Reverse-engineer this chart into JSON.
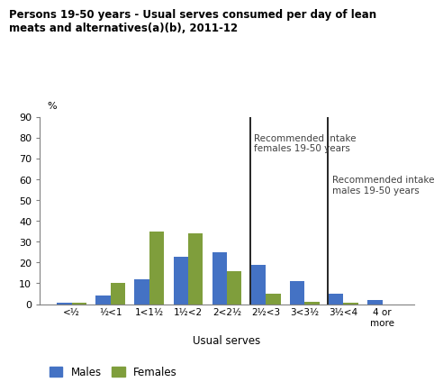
{
  "title": "Persons 19-50 years - Usual serves consumed per day of lean\nmeats and alternatives(a)(b), 2011-12",
  "categories": [
    "<½",
    "½<1",
    "1<1½",
    "1½<2",
    "2<2½",
    "2½<3",
    "3<3½",
    "3½<4",
    "4 or\nmore"
  ],
  "males": [
    0.5,
    4,
    12,
    23,
    25,
    19,
    11,
    5,
    2
  ],
  "females": [
    0.5,
    10,
    35,
    34,
    16,
    5,
    1,
    0.5,
    0
  ],
  "males_color": "#4472c4",
  "females_color": "#7f9e3c",
  "ylabel": "%",
  "xlabel": "Usual serves",
  "ylim": [
    0,
    90
  ],
  "yticks": [
    0,
    10,
    20,
    30,
    40,
    50,
    60,
    70,
    80,
    90
  ],
  "female_line_label": "Recommended intake\nfemales 19-50 years",
  "male_line_label": "Recommended intake\nmales 19-50 years",
  "annotation_color": "#404040",
  "legend_males": "Males",
  "legend_females": "Females",
  "background_color": "#ffffff"
}
